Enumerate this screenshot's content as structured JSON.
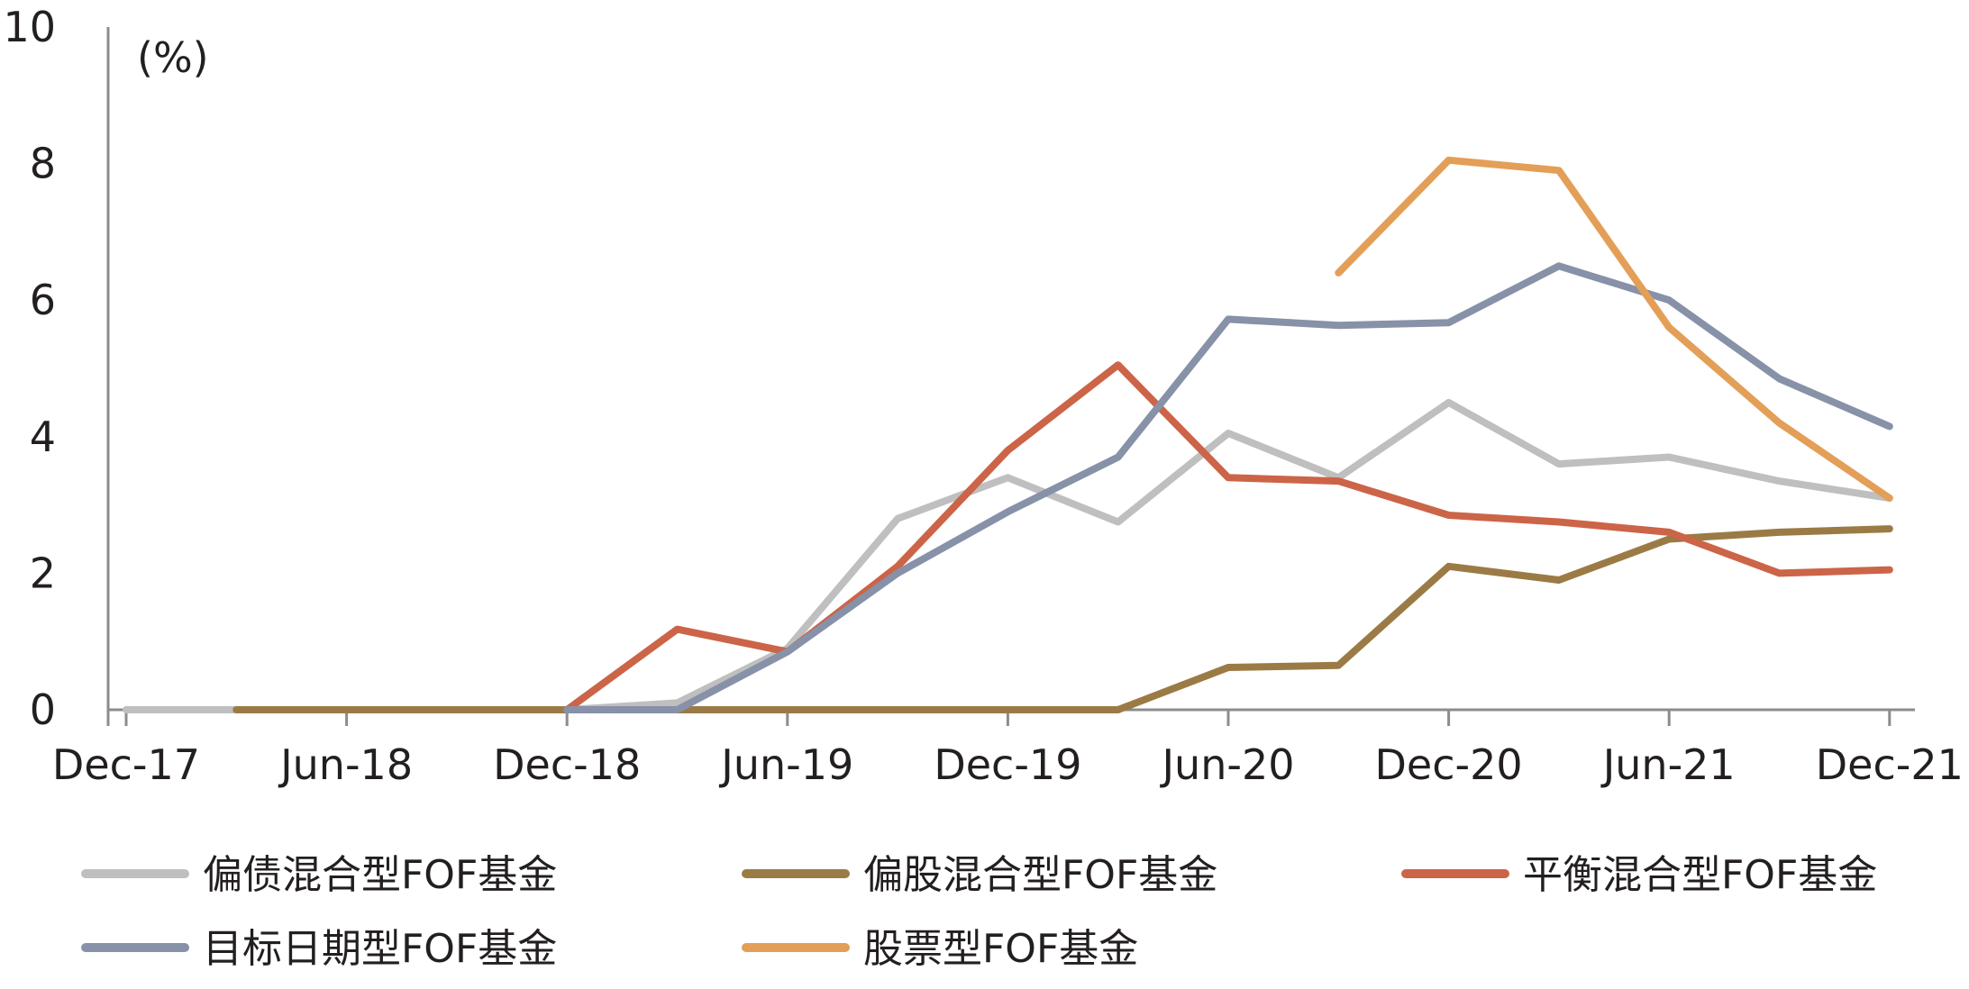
{
  "chart_data": {
    "type": "line",
    "title": "",
    "xlabel": "",
    "ylabel": "",
    "unit_label": "(%)",
    "categories": [
      "Dec-17",
      "Mar-18",
      "Jun-18",
      "Sep-18",
      "Dec-18",
      "Mar-19",
      "Jun-19",
      "Sep-19",
      "Dec-19",
      "Mar-20",
      "Jun-20",
      "Sep-20",
      "Dec-20",
      "Mar-21",
      "Jun-21",
      "Sep-21",
      "Dec-21"
    ],
    "x_tick_labels": [
      "Dec-17",
      "Jun-18",
      "Dec-18",
      "Jun-19",
      "Dec-19",
      "Jun-20",
      "Dec-20",
      "Jun-21",
      "Dec-21"
    ],
    "y_tick_labels": [
      "0",
      "2",
      "4",
      "6",
      "8",
      "10"
    ],
    "ylim": [
      0,
      10
    ],
    "grid": false,
    "legend_position": "bottom",
    "series": [
      {
        "name": "偏债混合型FOF基金",
        "color": "#bfbfbf",
        "values": [
          0,
          0,
          0,
          0,
          0,
          0.1,
          0.9,
          2.8,
          3.4,
          2.75,
          4.05,
          3.4,
          4.5,
          3.6,
          3.7,
          3.35,
          3.1
        ]
      },
      {
        "name": "偏股混合型FOF基金",
        "color": "#9b7b45",
        "values": [
          null,
          0,
          0,
          0,
          0,
          0,
          0,
          0,
          0,
          0,
          0.62,
          0.65,
          2.1,
          1.9,
          2.5,
          2.6,
          2.65
        ]
      },
      {
        "name": "平衡混合型FOF基金",
        "color": "#cc6448",
        "values": [
          null,
          null,
          null,
          null,
          0,
          1.18,
          0.85,
          2.1,
          3.8,
          5.05,
          3.4,
          3.35,
          2.85,
          2.75,
          2.6,
          2.0,
          2.05
        ]
      },
      {
        "name": "目标日期型FOF基金",
        "color": "#8791a8",
        "values": [
          null,
          null,
          null,
          null,
          0,
          0,
          0.85,
          2.0,
          2.9,
          3.7,
          5.72,
          5.63,
          5.67,
          6.5,
          6.0,
          4.85,
          4.15
        ]
      },
      {
        "name": "股票型FOF基金",
        "color": "#e39f57",
        "values": [
          null,
          null,
          null,
          null,
          null,
          null,
          null,
          null,
          null,
          null,
          null,
          6.4,
          8.05,
          7.9,
          5.6,
          4.2,
          3.1
        ]
      }
    ]
  }
}
